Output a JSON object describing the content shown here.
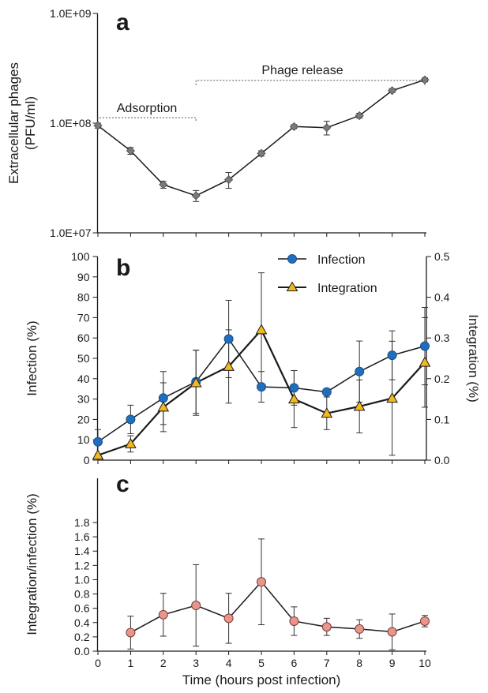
{
  "chart_data": [
    {
      "panel": "a",
      "type": "line",
      "x": [
        0,
        1,
        2,
        3,
        4,
        5,
        6,
        7,
        8,
        9,
        10
      ],
      "series": [
        {
          "values": [
            95000000,
            56000000,
            27500000,
            21800000,
            30500000,
            53000000,
            93000000,
            91000000,
            117000000,
            198000000,
            248000000
          ],
          "error": [
            5000000,
            4000000,
            2000000,
            2500000,
            5000000,
            3000000,
            4000000,
            13000000,
            6000000,
            8000000,
            10000000
          ],
          "color": "#7a7a7a",
          "marker": "diamond"
        }
      ],
      "ylabel": "Extracellular phages\n(PFU/ml)",
      "yscale": "log",
      "ylim": [
        10000000,
        1000000000
      ],
      "yticks": [
        "1.0E+07",
        "1.0E+08",
        "1.0E+09"
      ],
      "annotations": [
        {
          "text": "Adsorption",
          "x_start": 0,
          "x_end": 3,
          "y": 112000000
        },
        {
          "text": "Phage release",
          "x_start": 3,
          "x_end": 10,
          "y": 245000000
        }
      ]
    },
    {
      "panel": "b",
      "type": "line",
      "x": [
        0,
        1,
        2,
        3,
        4,
        5,
        6,
        7,
        8,
        9,
        10
      ],
      "ylabel": "Infection (%)",
      "ylim": [
        0,
        100
      ],
      "yticks": [
        "0",
        "10",
        "20",
        "30",
        "40",
        "50",
        "60",
        "70",
        "80",
        "90",
        "100"
      ],
      "y2label": "Integration (%)",
      "y2lim": [
        0,
        0.5
      ],
      "y2ticks": [
        "0.0",
        "0.1",
        "0.2",
        "0.3",
        "0.4",
        "0.5"
      ],
      "series": [
        {
          "name": "Infection",
          "axis": "left",
          "values": [
            9,
            20,
            30.5,
            38.5,
            59.5,
            36,
            35.5,
            33.5,
            43.5,
            51.5,
            56
          ],
          "error": [
            6,
            7,
            13,
            15.5,
            19,
            7.5,
            8.5,
            0,
            15,
            12,
            19
          ],
          "color": "#1f6fbf",
          "marker": "circle"
        },
        {
          "name": "Integration",
          "axis": "right",
          "values": [
            0.012,
            0.04,
            0.13,
            0.19,
            0.23,
            0.32,
            0.15,
            0.115,
            0.132,
            0.152,
            0.24
          ],
          "error": [
            0.03,
            0.02,
            0.06,
            0.08,
            0.09,
            0.14,
            0.07,
            0.04,
            0.065,
            0.14,
            0.11
          ],
          "color": "#f2b81f",
          "marker": "triangle"
        }
      ],
      "legend_position": "top-right"
    },
    {
      "panel": "c",
      "type": "line",
      "x": [
        1,
        2,
        3,
        4,
        5,
        6,
        7,
        8,
        9,
        10
      ],
      "series": [
        {
          "values": [
            0.26,
            0.51,
            0.64,
            0.46,
            0.97,
            0.42,
            0.34,
            0.31,
            0.27,
            0.42
          ],
          "error": [
            0.23,
            0.3,
            0.57,
            0.35,
            0.6,
            0.2,
            0.12,
            0.13,
            0.25,
            0.08
          ],
          "color": "#e8958c",
          "marker": "circle"
        }
      ],
      "ylabel": "Integration/infection (%)",
      "ylim": [
        0,
        1.8
      ],
      "yticks": [
        "0.0",
        "0.2",
        "0.4",
        "0.6",
        "0.8",
        "1.0",
        "1.2",
        "1.4",
        "1.6",
        "1.8"
      ],
      "xlabel": "Time (hours post infection)",
      "xticks": [
        "0",
        "1",
        "2",
        "3",
        "4",
        "5",
        "6",
        "7",
        "8",
        "9",
        "10"
      ]
    }
  ]
}
